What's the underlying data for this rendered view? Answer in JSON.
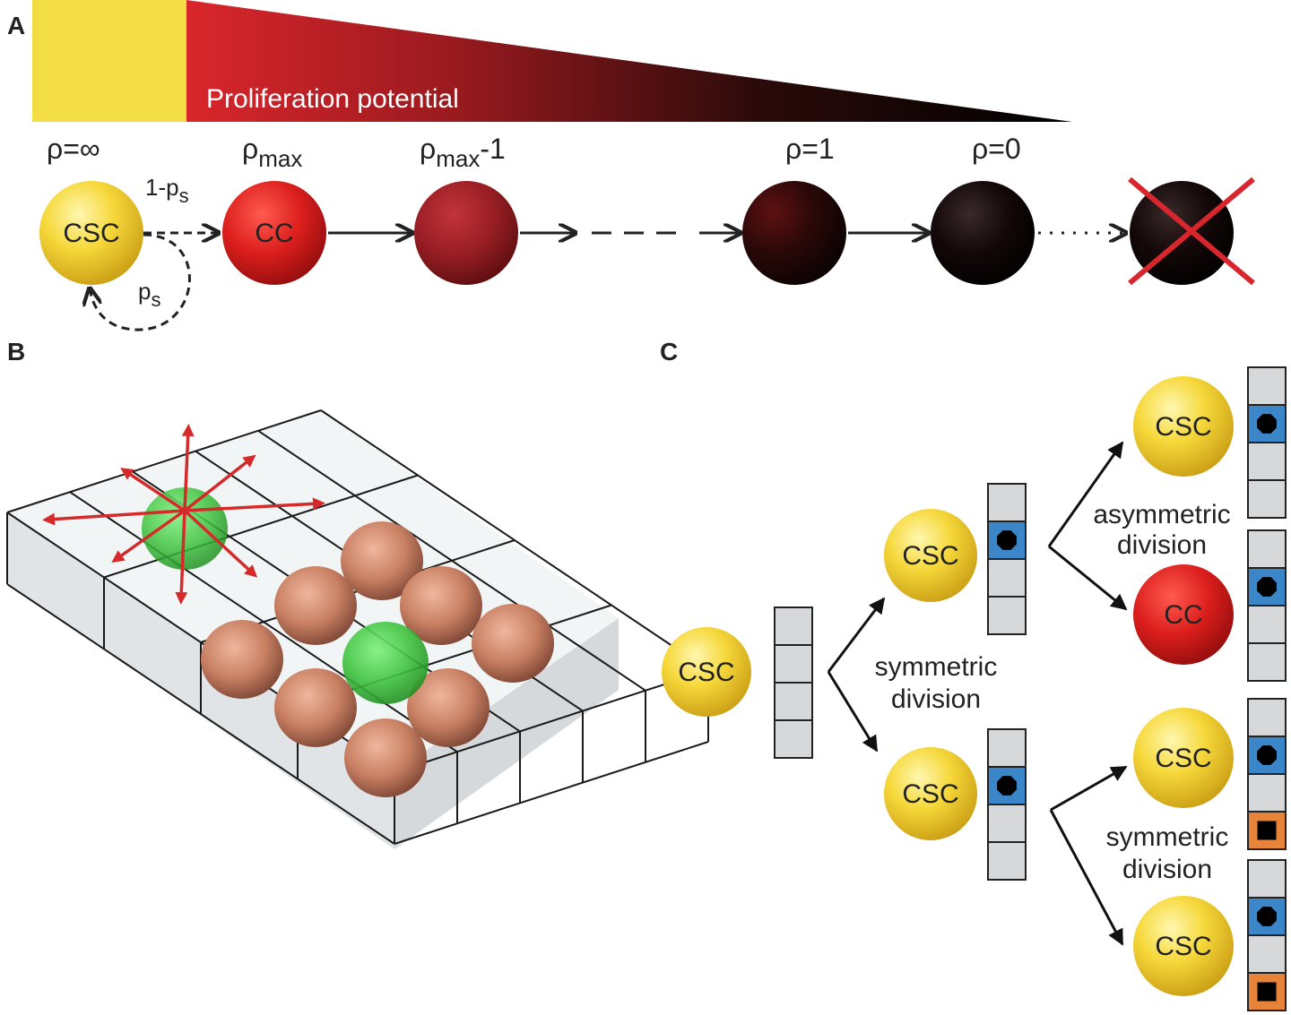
{
  "panels": {
    "a": {
      "letter": "A"
    },
    "b": {
      "letter": "B"
    },
    "c": {
      "letter": "C"
    }
  },
  "panel_a": {
    "banner_text": "Proliferation potential",
    "rho_inf": "ρ=∞",
    "rho_max_base": "ρ",
    "rho_max_sub": "max",
    "rho_max1_base": "ρ",
    "rho_max1_sub": "max",
    "rho_max1_suffix": "-1",
    "rho_1": "ρ=1",
    "rho_0": "ρ=0",
    "diff_prob_base": "1-p",
    "diff_prob_sub": "s",
    "self_prob_base": "p",
    "self_prob_sub": "s",
    "csc_label": "CSC",
    "cc_label": "CC"
  },
  "panel_c": {
    "csc_label": "CSC",
    "cc_label": "CC",
    "sym_label_line1": "symmetric",
    "sym_label_line2": "division",
    "asym_label_line1": "asymmetric",
    "asym_label_line2": "division",
    "sym2_label_line1": "symmetric",
    "sym2_label_line2": "division"
  },
  "colors": {
    "csc_yellow": "#f2d22c",
    "cc_red": "#d8201f",
    "marker_blue": "#3a86c8",
    "marker_orange": "#e8843a",
    "cross_red": "#d8262e",
    "arrow_red": "#d42a2a",
    "green_cell": "#3fc33f",
    "tumor_cell": "#c98063"
  }
}
